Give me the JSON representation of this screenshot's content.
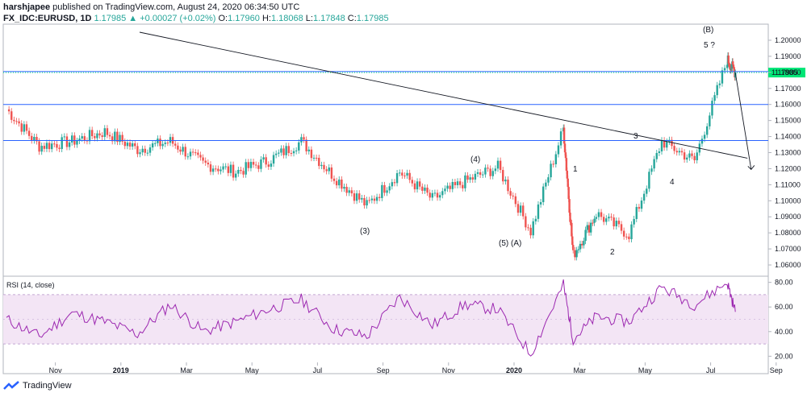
{
  "header": {
    "author": "harshjapee",
    "published": "published on TradingView.com, August 24, 2020 06:34:50 UTC",
    "symbol": "FX_IDC:EURUSD, 1D",
    "last": "1.17985",
    "change": "+0.00027 (+0.02%)",
    "o_label": "O:",
    "o_val": "1.17960",
    "h_label": "H:",
    "h_val": "1.18068",
    "l_label": "L:",
    "l_val": "1.17848",
    "c_label": "C:",
    "c_val": "1.17985"
  },
  "footer": {
    "brand": "TradingView"
  },
  "colors": {
    "up": "#26a69a",
    "down": "#ef5350",
    "level": "#2962ff",
    "rsi": "#9c27b0",
    "rsi_band": "#f3e5f5",
    "price_tag": "#00e676"
  },
  "chart_data": [
    {
      "type": "candlestick",
      "ylim": [
        1.055,
        1.205
      ],
      "yticks": [
        "1.20000",
        "1.19000",
        "1.18000",
        "1.17000",
        "1.16000",
        "1.15000",
        "1.14000",
        "1.13000",
        "1.12000",
        "1.11000",
        "1.10000",
        "1.09000",
        "1.08000",
        "1.07000",
        "1.06000"
      ],
      "xticks": [
        "Nov",
        "2019",
        "Mar",
        "May",
        "Jul",
        "Sep",
        "Nov",
        "2020",
        "Mar",
        "May",
        "Jul",
        "Sep"
      ],
      "current_price_label": "1.17985",
      "horizontal_levels": [
        1.1805,
        1.16,
        1.1375
      ],
      "trendline": {
        "from": [
          "Oct 2018",
          1.205
        ],
        "to": [
          "Aug 2020",
          1.1265
        ]
      },
      "projection": {
        "from": [
          "Aug 2020",
          1.1798
        ],
        "to": [
          "Sep 2020",
          1.1195
        ]
      },
      "wave_labels": [
        "(B)",
        "5 ?",
        "3",
        "4",
        "1",
        "2",
        "(4)",
        "(3)",
        "(5) (A)"
      ],
      "trend": [
        [
          "Oct 2018",
          1.157
        ],
        [
          "Nov 2018",
          1.134
        ],
        [
          "Dec 2018",
          1.137
        ],
        [
          "Jan 2019",
          1.143
        ],
        [
          "Feb 2019",
          1.132
        ],
        [
          "Mar 2019",
          1.137
        ],
        [
          "Apr 2019",
          1.123
        ],
        [
          "May 2019",
          1.118
        ],
        [
          "Jun 2019",
          1.125
        ],
        [
          "Jul 2019",
          1.137
        ],
        [
          "Aug 2019",
          1.115
        ],
        [
          "Sep 2019",
          1.097
        ],
        [
          "Oct 2019",
          1.118
        ],
        [
          "Nov 2019",
          1.101
        ],
        [
          "Dec 2019",
          1.112
        ],
        [
          "Jan 2020",
          1.121
        ],
        [
          "Feb 2020",
          1.081
        ],
        [
          "Mar 2020",
          1.145
        ],
        [
          "Mar 2020",
          1.066
        ],
        [
          "Apr 2020",
          1.092
        ],
        [
          "May 2020",
          1.079
        ],
        [
          "Jun 2020",
          1.137
        ],
        [
          "Jul 2020",
          1.125
        ],
        [
          "Aug 2020",
          1.188
        ],
        [
          "Aug 2020",
          1.1798
        ]
      ]
    },
    {
      "type": "line",
      "title": "RSI (14, close)",
      "ylim": [
        15,
        85
      ],
      "yticks": [
        "80.00",
        "60.00",
        "40.00",
        "20.00"
      ],
      "band": [
        30,
        70
      ],
      "trend": [
        [
          "Oct 2018",
          50
        ],
        [
          "Nov 2018",
          36
        ],
        [
          "Dec 2018",
          55
        ],
        [
          "Jan 2019",
          48
        ],
        [
          "Feb 2019",
          38
        ],
        [
          "Mar 2019",
          62
        ],
        [
          "Apr 2019",
          40
        ],
        [
          "May 2019",
          48
        ],
        [
          "Jun 2019",
          58
        ],
        [
          "Jul 2019",
          66
        ],
        [
          "Aug 2019",
          42
        ],
        [
          "Sep 2019",
          36
        ],
        [
          "Oct 2019",
          68
        ],
        [
          "Nov 2019",
          45
        ],
        [
          "Dec 2019",
          62
        ],
        [
          "Jan 2020",
          58
        ],
        [
          "Feb 2020",
          22
        ],
        [
          "Mar 2020",
          78
        ],
        [
          "Mar 2020",
          34
        ],
        [
          "Apr 2020",
          52
        ],
        [
          "May 2020",
          48
        ],
        [
          "Jun 2020",
          76
        ],
        [
          "Jul 2020",
          62
        ],
        [
          "Aug 2020",
          80
        ],
        [
          "Aug 2020",
          56
        ]
      ]
    }
  ]
}
